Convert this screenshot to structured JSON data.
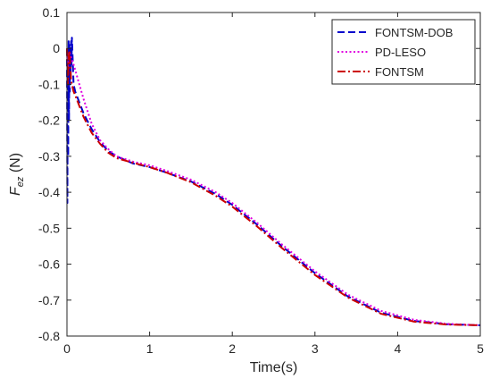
{
  "chart_data": {
    "type": "line",
    "title": "",
    "xlabel": "Time(s)",
    "ylabel": {
      "main": "F",
      "subscript": "ez",
      "unit": " (N)"
    },
    "xlim": [
      0,
      5
    ],
    "ylim": [
      -0.8,
      0.1
    ],
    "xticks": [
      0,
      1,
      2,
      3,
      4,
      5
    ],
    "xtick_labels": [
      "0",
      "1",
      "2",
      "3",
      "4",
      "5"
    ],
    "yticks": [
      0.1,
      0,
      -0.1,
      -0.2,
      -0.3,
      -0.4,
      -0.5,
      -0.6,
      -0.7,
      -0.8
    ],
    "ytick_labels": [
      "0.1",
      "0",
      "-0.1",
      "-0.2",
      "-0.3",
      "-0.4",
      "-0.5",
      "-0.6",
      "-0.7",
      "-0.8"
    ],
    "grid": false,
    "legend_position": "top-right",
    "series": [
      {
        "name": "FONTSM-DOB",
        "color": "#0000cc",
        "dash": "dashed",
        "x": [
          0,
          0.005,
          0.01,
          0.015,
          0.02,
          0.025,
          0.03,
          0.035,
          0.04,
          0.045,
          0.05,
          0.055,
          0.06,
          0.08,
          0.1,
          0.15,
          0.2,
          0.3,
          0.4,
          0.5,
          0.6,
          0.8,
          1.0,
          1.2,
          1.5,
          1.8,
          2.0,
          2.3,
          2.6,
          3.0,
          3.4,
          3.8,
          4.2,
          4.6,
          5.0
        ],
        "values": [
          0,
          -0.43,
          0.0,
          -0.3,
          0.02,
          -0.2,
          0.01,
          -0.12,
          0.0,
          -0.08,
          0.02,
          -0.05,
          0.03,
          -0.1,
          -0.12,
          -0.15,
          -0.18,
          -0.225,
          -0.26,
          -0.285,
          -0.3,
          -0.32,
          -0.33,
          -0.345,
          -0.37,
          -0.405,
          -0.435,
          -0.49,
          -0.55,
          -0.625,
          -0.69,
          -0.735,
          -0.758,
          -0.767,
          -0.77
        ]
      },
      {
        "name": "PD-LESO",
        "color": "#e000e0",
        "dash": "dotted",
        "x": [
          0,
          0.01,
          0.02,
          0.03,
          0.05,
          0.08,
          0.1,
          0.15,
          0.2,
          0.3,
          0.4,
          0.5,
          0.6,
          0.8,
          1.0,
          1.2,
          1.5,
          1.8,
          2.0,
          2.3,
          2.6,
          3.0,
          3.4,
          3.8,
          4.2,
          4.6,
          5.0
        ],
        "values": [
          0,
          -0.06,
          -0.02,
          -0.01,
          -0.025,
          -0.045,
          -0.06,
          -0.1,
          -0.14,
          -0.21,
          -0.255,
          -0.28,
          -0.3,
          -0.315,
          -0.325,
          -0.34,
          -0.365,
          -0.4,
          -0.43,
          -0.485,
          -0.545,
          -0.62,
          -0.685,
          -0.73,
          -0.755,
          -0.766,
          -0.77
        ]
      },
      {
        "name": "FONTSM",
        "color": "#cc0000",
        "dash": "dashdot",
        "x": [
          0,
          0.01,
          0.02,
          0.03,
          0.04,
          0.05,
          0.08,
          0.1,
          0.15,
          0.2,
          0.3,
          0.4,
          0.5,
          0.6,
          0.8,
          1.0,
          1.2,
          1.5,
          1.8,
          2.0,
          2.3,
          2.6,
          3.0,
          3.4,
          3.8,
          4.2,
          4.6,
          5.0
        ],
        "values": [
          0,
          -0.1,
          -0.03,
          -0.005,
          -0.05,
          -0.09,
          -0.12,
          -0.13,
          -0.16,
          -0.19,
          -0.235,
          -0.265,
          -0.29,
          -0.305,
          -0.318,
          -0.33,
          -0.345,
          -0.372,
          -0.41,
          -0.44,
          -0.495,
          -0.555,
          -0.63,
          -0.693,
          -0.738,
          -0.76,
          -0.768,
          -0.77
        ]
      }
    ]
  }
}
